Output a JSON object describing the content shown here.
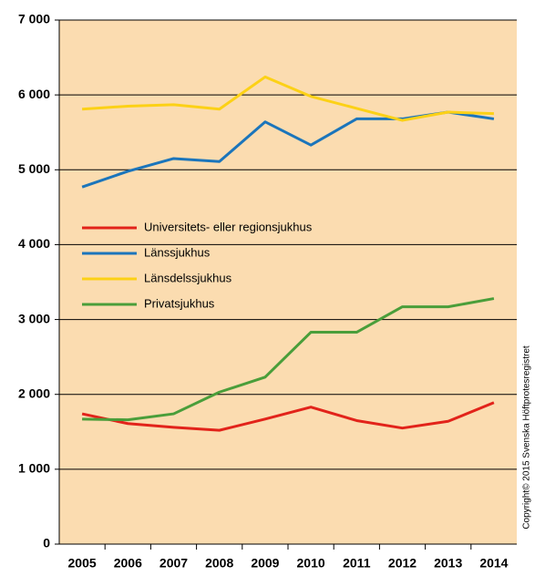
{
  "chart_data": {
    "type": "line",
    "categories": [
      "2005",
      "2006",
      "2007",
      "2008",
      "2009",
      "2010",
      "2011",
      "2012",
      "2013",
      "2014"
    ],
    "series": [
      {
        "name": "Universitets- eller regionsjukhus",
        "color": "#e2231a",
        "values": [
          1740,
          1610,
          1560,
          1520,
          1670,
          1830,
          1650,
          1550,
          1640,
          1890
        ]
      },
      {
        "name": "Länssjukhus",
        "color": "#1b75bb",
        "values": [
          4770,
          4980,
          5150,
          5110,
          5640,
          5330,
          5680,
          5680,
          5770,
          5680
        ]
      },
      {
        "name": "Länsdelssjukhus",
        "color": "#fcd116",
        "values": [
          5810,
          5850,
          5870,
          5810,
          6240,
          5980,
          5820,
          5660,
          5770,
          5750
        ]
      },
      {
        "name": "Privatsjukhus",
        "color": "#4a9e3a",
        "values": [
          1670,
          1660,
          1740,
          2030,
          2230,
          2830,
          2830,
          3170,
          3170,
          3280
        ]
      }
    ],
    "ylim": [
      0,
      7000
    ],
    "yticks": [
      0,
      {
        "value": 1000,
        "label": "1 000"
      },
      {
        "value": 2000,
        "label": "2 000"
      },
      {
        "value": 3000,
        "label": "3 000"
      },
      {
        "value": 4000,
        "label": "4 000"
      },
      {
        "value": 5000,
        "label": "5 000"
      },
      {
        "value": 6000,
        "label": "6 000"
      },
      {
        "value": 7000,
        "label": "7 000"
      }
    ],
    "grid": true,
    "copyright": "Copyright© 2015 Svenska Höftprotesregistret"
  }
}
